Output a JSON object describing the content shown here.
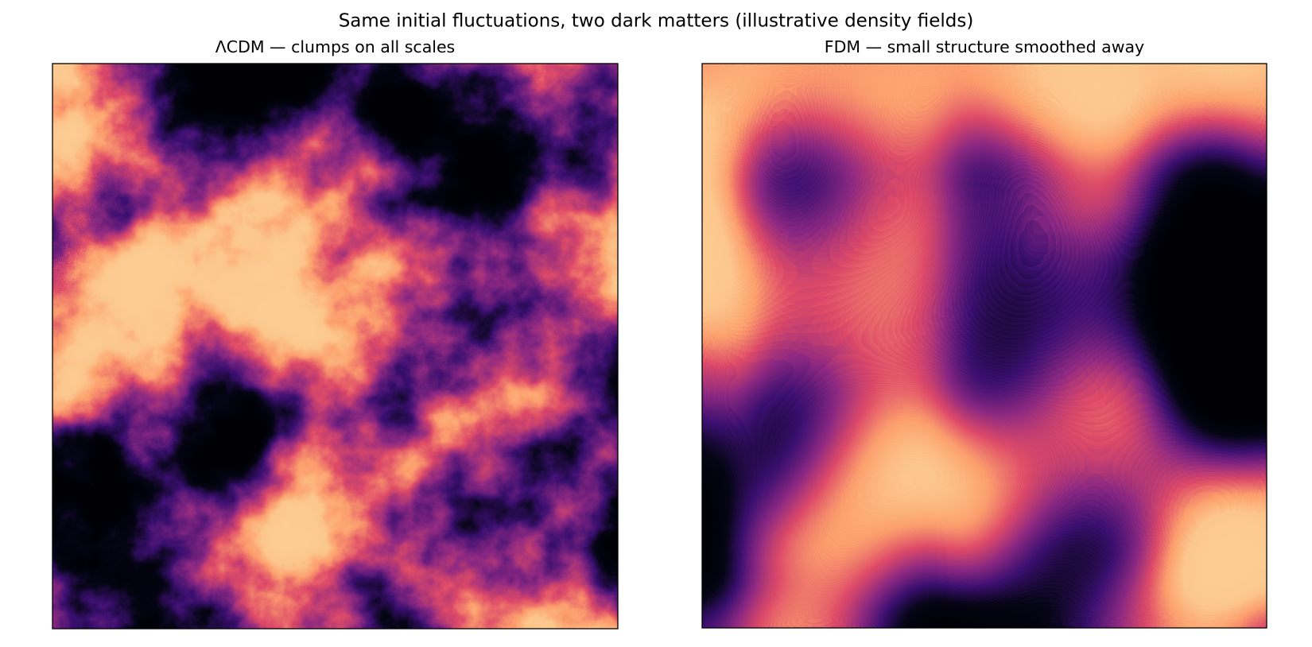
{
  "title": "Same initial fluctuations, two dark matters (illustrative density fields)",
  "chart_data": [
    {
      "type": "density-field",
      "title": "ΛCDM — clumps on all scales",
      "colormap": "magma",
      "smoothed": false
    },
    {
      "type": "density-field",
      "title": "FDM — small structure smoothed away",
      "colormap": "magma",
      "smoothed": true
    }
  ]
}
